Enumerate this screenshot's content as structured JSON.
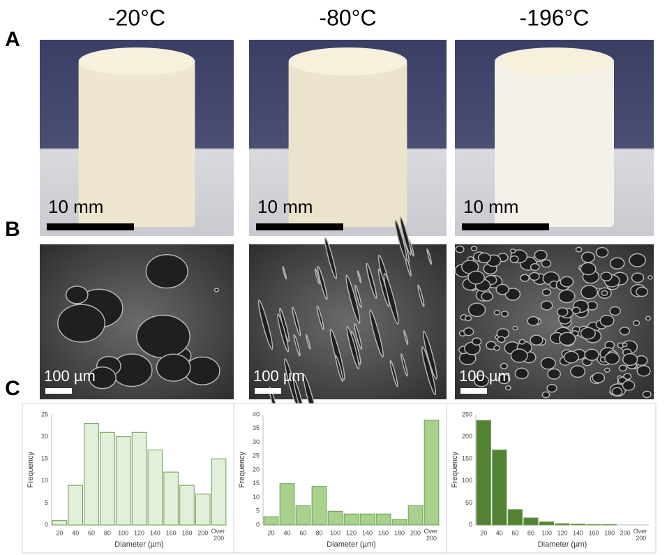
{
  "panel_labels": [
    "A",
    "B",
    "C"
  ],
  "columns": [
    {
      "temperature": "-20°C",
      "photo_scale": "10 mm",
      "sem_scale": "100 µm"
    },
    {
      "temperature": "-80°C",
      "photo_scale": "10 mm",
      "sem_scale": "100 µm"
    },
    {
      "temperature": "-196°C",
      "photo_scale": "10 mm",
      "sem_scale": "100 µm"
    }
  ],
  "chart_data": [
    {
      "type": "bar",
      "x_label": "Diameter (µm)",
      "y_label": "Frequency",
      "categories": [
        "20",
        "40",
        "60",
        "80",
        "100",
        "120",
        "140",
        "160",
        "180",
        "200",
        "Over 200"
      ],
      "values": [
        1,
        9,
        23,
        21,
        20,
        21,
        17,
        12,
        9,
        7,
        15
      ],
      "color": "#e2f0d9",
      "ylim": [
        0,
        25
      ],
      "yticks": [
        0,
        5,
        10,
        15,
        20,
        25
      ],
      "grid": false
    },
    {
      "type": "bar",
      "x_label": "Diameter (µm)",
      "y_label": "Frequency",
      "categories": [
        "20",
        "40",
        "60",
        "80",
        "100",
        "120",
        "140",
        "160",
        "180",
        "200",
        "Over 200"
      ],
      "values": [
        3,
        15,
        7,
        14,
        5,
        4,
        4,
        4,
        2,
        7,
        38
      ],
      "color": "#a9d18e",
      "ylim": [
        0,
        40
      ],
      "yticks": [
        0,
        5,
        10,
        15,
        20,
        25,
        30,
        35,
        40
      ],
      "grid": false
    },
    {
      "type": "bar",
      "x_label": "Diameter (µm)",
      "y_label": "Frequency",
      "categories": [
        "20",
        "40",
        "60",
        "80",
        "100",
        "120",
        "140",
        "160",
        "180",
        "200",
        "Over 200"
      ],
      "values": [
        237,
        170,
        35,
        16,
        7,
        3,
        2,
        1,
        1,
        0,
        0
      ],
      "color": "#548235",
      "ylim": [
        0,
        250
      ],
      "yticks": [
        0,
        50,
        100,
        150,
        200,
        250
      ],
      "grid": false
    }
  ]
}
